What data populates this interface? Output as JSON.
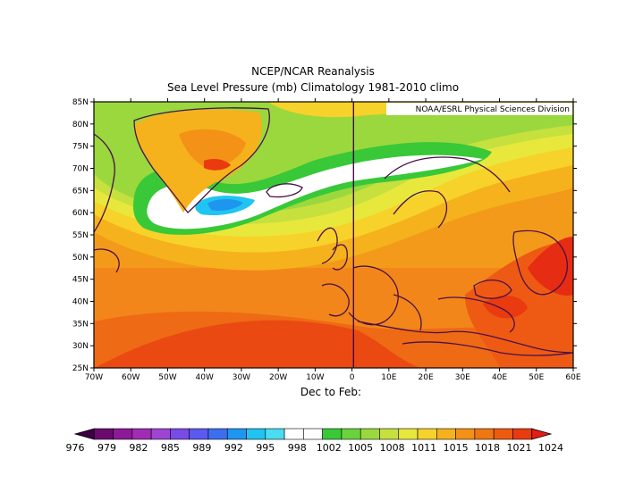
{
  "title_line1": "NCEP/NCAR Reanalysis",
  "title_line2": "Sea Level Pressure (mb) Climatology 1981-2010 climo",
  "credit": "NOAA/ESRL Physical Sciences Division",
  "season_label": "Dec to Feb:",
  "map": {
    "variable": "Sea Level Pressure (mb)",
    "lat_labels": [
      "85N",
      "80N",
      "75N",
      "70N",
      "65N",
      "60N",
      "55N",
      "50N",
      "45N",
      "40N",
      "35N",
      "30N",
      "25N"
    ],
    "lon_labels": [
      "70W",
      "60W",
      "50W",
      "40W",
      "30W",
      "20W",
      "10W",
      "0",
      "10E",
      "20E",
      "30E",
      "40E",
      "50E",
      "60E"
    ],
    "lat_range": [
      25,
      85
    ],
    "lon_range": [
      -70,
      60
    ],
    "reference_meridian": "0",
    "coastline_color": "#4a1048"
  },
  "colorbar": {
    "labels": [
      "976",
      "979",
      "982",
      "985",
      "989",
      "992",
      "995",
      "998",
      "1002",
      "1005",
      "1008",
      "1011",
      "1015",
      "1018",
      "1021",
      "1024"
    ],
    "colors": [
      "#3a0040",
      "#6a0a6e",
      "#8c1a96",
      "#a02cb4",
      "#9e44d2",
      "#7a4ae6",
      "#5a5af0",
      "#3c6ef0",
      "#1e96f0",
      "#20c4f0",
      "#4adcf0",
      "#ffffff",
      "#ffffff",
      "#38c838",
      "#6ad23a",
      "#9ad83e",
      "#c6e03e",
      "#e8e83c",
      "#f7d22a",
      "#f5b21c",
      "#f39216",
      "#f07612",
      "#ee5a10",
      "#ea3a10",
      "#e21e14"
    ]
  }
}
